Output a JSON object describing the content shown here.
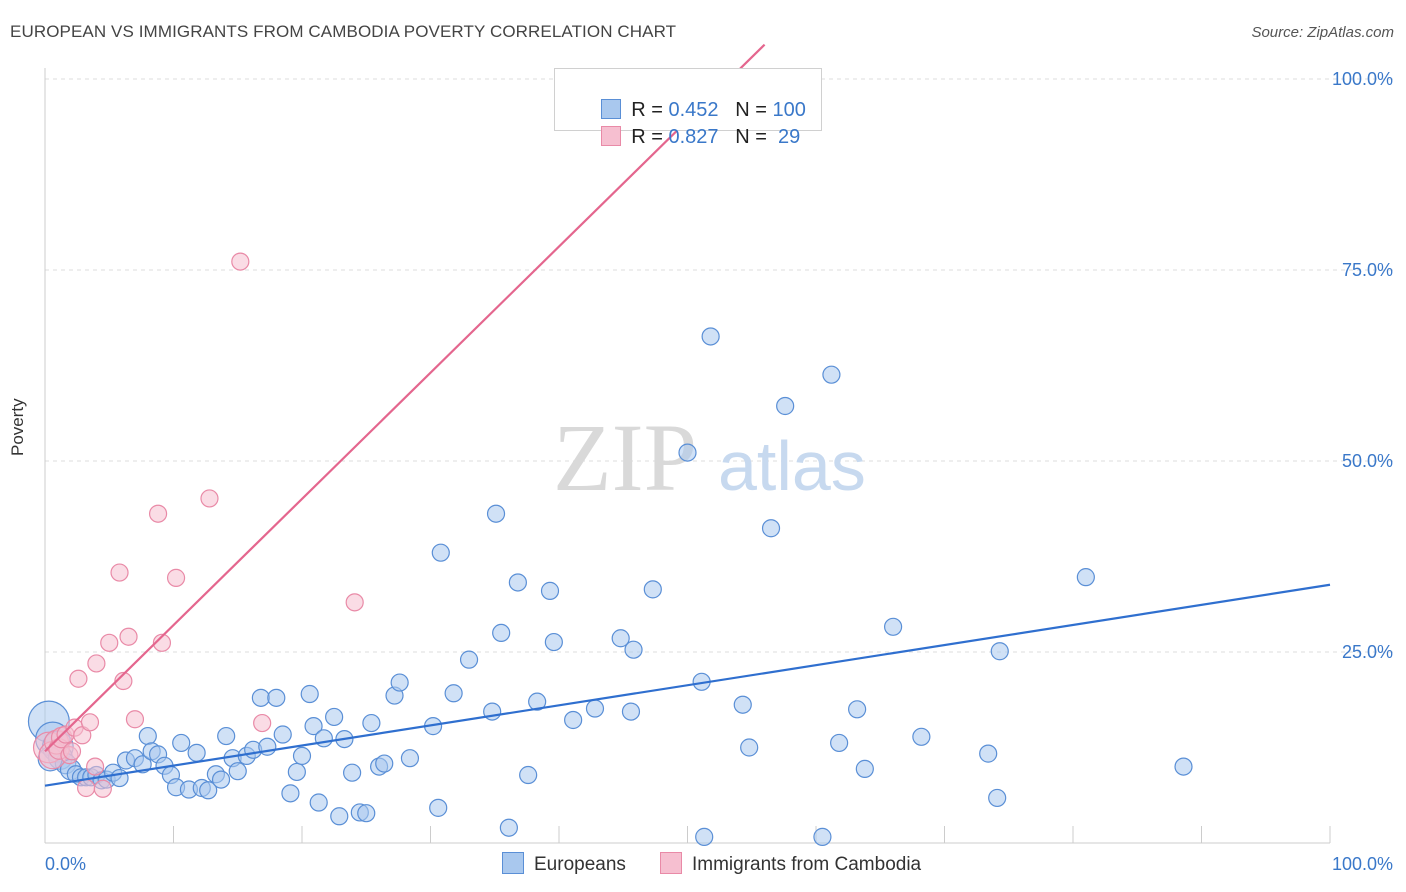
{
  "title": "EUROPEAN VS IMMIGRANTS FROM CAMBODIA POVERTY CORRELATION CHART",
  "source": "Source: ZipAtlas.com",
  "watermark": {
    "zip": "ZIP",
    "atlas": "atlas"
  },
  "legend": {
    "rows": [
      {
        "r_label": "R = ",
        "r_value": "0.452",
        "n_label": "N = ",
        "n_value": "100"
      },
      {
        "r_label": "R = ",
        "r_value": "0.827",
        "n_label": "N = ",
        "n_value": " 29"
      }
    ]
  },
  "bottom_legend": [
    "Europeans",
    "Immigrants from Cambodia"
  ],
  "colors": {
    "blue_fill": "#a9c8ee",
    "blue_stroke": "#5a8fd6",
    "blue_line": "#2f6fcf",
    "pink_fill": "#f6bfd0",
    "pink_stroke": "#e98aa7",
    "pink_line": "#e4668e",
    "grid": "#dddddd",
    "axis_text": "#3a78c9"
  },
  "chart_data": {
    "type": "scatter",
    "title": "EUROPEAN VS IMMIGRANTS FROM CAMBODIA POVERTY CORRELATION CHART",
    "xlabel": "",
    "ylabel": "Poverty",
    "xlim": [
      0,
      100
    ],
    "ylim": [
      0,
      100
    ],
    "x_tick_labels": [
      "0.0%",
      "100.0%"
    ],
    "y_tick_labels": [
      "25.0%",
      "50.0%",
      "75.0%",
      "100.0%"
    ],
    "y_ticks": [
      25,
      50,
      75,
      100
    ],
    "grid": true,
    "series": [
      {
        "name": "Europeans",
        "color": "#5a8fd6",
        "r": 0.452,
        "n": 100,
        "trend": {
          "x": [
            0,
            100
          ],
          "y": [
            7.5,
            33.8
          ]
        },
        "points": [
          [
            0.3,
            15.9
          ],
          [
            0.6,
            13.6
          ],
          [
            1.0,
            12.6
          ],
          [
            1.2,
            11.2
          ],
          [
            1.6,
            10.4
          ],
          [
            2.0,
            9.6
          ],
          [
            2.4,
            9.0
          ],
          [
            2.8,
            8.6
          ],
          [
            3.2,
            8.6
          ],
          [
            3.6,
            8.6
          ],
          [
            4.0,
            8.9
          ],
          [
            4.4,
            8.2
          ],
          [
            4.8,
            8.3
          ],
          [
            5.3,
            9.2
          ],
          [
            5.8,
            8.5
          ],
          [
            6.3,
            10.8
          ],
          [
            7.0,
            11.1
          ],
          [
            7.6,
            10.3
          ],
          [
            8.0,
            14.0
          ],
          [
            8.3,
            12.0
          ],
          [
            8.8,
            11.6
          ],
          [
            9.3,
            10.1
          ],
          [
            9.8,
            8.9
          ],
          [
            10.2,
            7.3
          ],
          [
            10.6,
            13.1
          ],
          [
            11.2,
            7.0
          ],
          [
            11.8,
            11.8
          ],
          [
            12.2,
            7.2
          ],
          [
            12.7,
            6.9
          ],
          [
            13.3,
            9.0
          ],
          [
            13.7,
            8.3
          ],
          [
            14.1,
            14.0
          ],
          [
            14.6,
            11.1
          ],
          [
            15.0,
            9.4
          ],
          [
            15.7,
            11.4
          ],
          [
            16.2,
            12.2
          ],
          [
            16.8,
            19.0
          ],
          [
            17.3,
            12.6
          ],
          [
            18.0,
            19.0
          ],
          [
            18.5,
            14.2
          ],
          [
            19.1,
            6.5
          ],
          [
            19.6,
            9.3
          ],
          [
            20.0,
            11.4
          ],
          [
            20.6,
            19.5
          ],
          [
            20.9,
            15.3
          ],
          [
            21.3,
            5.3
          ],
          [
            21.7,
            13.7
          ],
          [
            22.5,
            16.5
          ],
          [
            22.9,
            3.5
          ],
          [
            23.3,
            13.6
          ],
          [
            23.9,
            9.2
          ],
          [
            24.5,
            4.0
          ],
          [
            25.0,
            3.9
          ],
          [
            25.4,
            15.7
          ],
          [
            26.0,
            10.0
          ],
          [
            26.4,
            10.4
          ],
          [
            27.2,
            19.3
          ],
          [
            27.6,
            21.0
          ],
          [
            28.4,
            11.1
          ],
          [
            30.2,
            15.3
          ],
          [
            30.6,
            4.6
          ],
          [
            30.8,
            38.0
          ],
          [
            31.8,
            19.6
          ],
          [
            33.0,
            24.0
          ],
          [
            34.8,
            17.2
          ],
          [
            35.1,
            43.1
          ],
          [
            35.5,
            27.5
          ],
          [
            36.1,
            2.0
          ],
          [
            36.8,
            34.1
          ],
          [
            37.6,
            8.9
          ],
          [
            38.3,
            18.5
          ],
          [
            39.3,
            33.0
          ],
          [
            39.6,
            26.3
          ],
          [
            41.1,
            16.1
          ],
          [
            42.8,
            17.6
          ],
          [
            44.8,
            26.8
          ],
          [
            45.6,
            17.2
          ],
          [
            45.8,
            25.3
          ],
          [
            47.3,
            33.2
          ],
          [
            50.0,
            51.1
          ],
          [
            51.1,
            21.1
          ],
          [
            51.3,
            0.8
          ],
          [
            51.8,
            66.3
          ],
          [
            54.3,
            18.1
          ],
          [
            54.8,
            12.5
          ],
          [
            56.5,
            41.2
          ],
          [
            57.6,
            57.2
          ],
          [
            60.5,
            0.8
          ],
          [
            61.2,
            61.3
          ],
          [
            61.8,
            13.1
          ],
          [
            63.2,
            17.5
          ],
          [
            63.8,
            9.7
          ],
          [
            66.0,
            28.3
          ],
          [
            68.2,
            13.9
          ],
          [
            73.4,
            11.7
          ],
          [
            74.1,
            5.9
          ],
          [
            74.3,
            25.1
          ],
          [
            81.0,
            34.8
          ],
          [
            88.6,
            10.0
          ],
          [
            0.4,
            11.0
          ]
        ],
        "point_sizes": [
          24,
          20,
          18,
          14,
          12,
          12,
          10,
          10,
          10,
          10,
          10,
          10,
          10,
          10,
          10,
          10,
          10,
          10,
          10,
          10,
          10,
          10,
          10,
          10,
          10,
          10,
          10,
          10,
          10,
          10,
          10,
          10,
          10,
          10,
          10,
          10,
          10,
          10,
          10,
          10,
          10,
          10,
          10,
          10,
          10,
          10,
          10,
          10,
          10,
          10,
          10,
          10,
          10,
          10,
          10,
          10,
          10,
          10,
          10,
          10,
          10,
          10,
          10,
          10,
          10,
          10,
          10,
          10,
          10,
          10,
          10,
          10,
          10,
          10,
          10,
          10,
          10,
          10,
          10,
          10,
          10,
          10,
          10,
          10,
          10,
          10,
          10,
          10,
          10,
          10,
          10,
          10,
          10,
          10,
          10,
          10,
          10,
          10,
          10,
          14
        ]
      },
      {
        "name": "Immigrants from Cambodia",
        "color": "#e98aa7",
        "r": 0.827,
        "n": 29,
        "trend": {
          "x": [
            0,
            56
          ],
          "y": [
            12.0,
            104.5
          ]
        },
        "points": [
          [
            0.3,
            12.5
          ],
          [
            0.6,
            11.5
          ],
          [
            0.9,
            13.2
          ],
          [
            1.1,
            12.3
          ],
          [
            1.3,
            13.8
          ],
          [
            1.6,
            14.2
          ],
          [
            1.9,
            11.5
          ],
          [
            2.1,
            12.0
          ],
          [
            2.3,
            15.1
          ],
          [
            2.6,
            21.5
          ],
          [
            2.9,
            14.1
          ],
          [
            3.2,
            7.2
          ],
          [
            3.5,
            15.8
          ],
          [
            3.9,
            10.0
          ],
          [
            4.0,
            23.5
          ],
          [
            4.5,
            7.1
          ],
          [
            5.0,
            26.2
          ],
          [
            5.8,
            35.4
          ],
          [
            6.1,
            21.2
          ],
          [
            6.5,
            27.0
          ],
          [
            7.0,
            16.2
          ],
          [
            8.8,
            43.1
          ],
          [
            9.1,
            26.2
          ],
          [
            10.2,
            34.7
          ],
          [
            12.8,
            45.1
          ],
          [
            15.2,
            76.1
          ],
          [
            16.9,
            15.7
          ],
          [
            24.1,
            31.5
          ],
          [
            55.1,
            100.0
          ]
        ],
        "point_sizes": [
          18,
          16,
          14,
          12,
          12,
          10,
          10,
          10,
          10,
          10,
          10,
          10,
          10,
          10,
          10,
          10,
          10,
          10,
          10,
          10,
          10,
          10,
          10,
          10,
          10,
          10,
          10,
          10,
          10
        ]
      }
    ]
  }
}
